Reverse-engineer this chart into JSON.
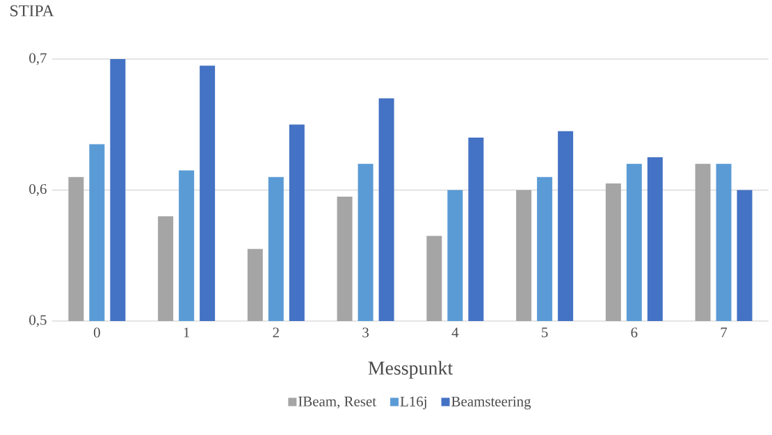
{
  "chart_data": {
    "type": "bar",
    "ylabel": "STIPA",
    "xlabel": "Messpunkt",
    "categories": [
      "0",
      "1",
      "2",
      "3",
      "4",
      "5",
      "6",
      "7"
    ],
    "series": [
      {
        "name": "IBeam, Reset",
        "color": "#a5a5a5",
        "values": [
          0.61,
          0.58,
          0.555,
          0.595,
          0.565,
          0.6,
          0.605,
          0.62
        ]
      },
      {
        "name": "L16j",
        "color": "#5b9bd5",
        "values": [
          0.635,
          0.615,
          0.61,
          0.62,
          0.6,
          0.61,
          0.62,
          0.62
        ]
      },
      {
        "name": "Beamsteering",
        "color": "#4472c4",
        "values": [
          0.7,
          0.695,
          0.65,
          0.67,
          0.64,
          0.645,
          0.625,
          0.6
        ]
      }
    ],
    "ylim": [
      0.5,
      0.7
    ],
    "yticks": [
      {
        "value": 0.5,
        "label": "0,5"
      },
      {
        "value": 0.6,
        "label": "0,6"
      },
      {
        "value": 0.7,
        "label": "0,7"
      }
    ],
    "grid": "y",
    "legend": "bottom"
  }
}
